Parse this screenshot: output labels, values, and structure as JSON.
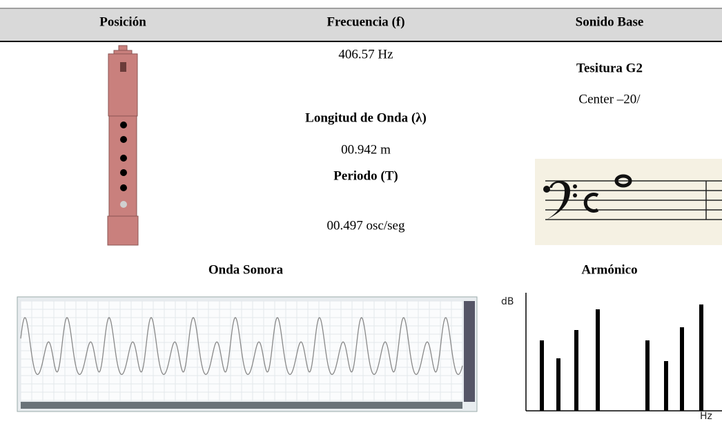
{
  "table": {
    "headers": [
      "Posición",
      "Frecuencia (f)",
      "Sonido Base"
    ],
    "frequency": "406.57 Hz",
    "wavelength_label": "Longitud de Onda (λ)",
    "wavelength": "00.942 m",
    "period_label": "Periodo (T)",
    "period": "00.497 osc/seg",
    "tessitura": "Tesitura G2",
    "center": "Center –20/"
  },
  "sections": {
    "wave_title": "Onda Sonora",
    "harmonic_title": "Armónico",
    "harmonic_y_label": "dB",
    "harmonic_x_label": "Hz"
  }
}
